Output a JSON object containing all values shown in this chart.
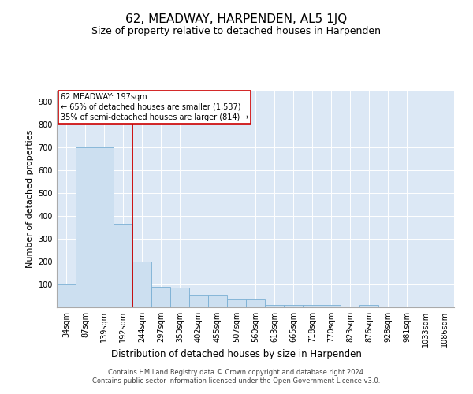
{
  "title": "62, MEADWAY, HARPENDEN, AL5 1JQ",
  "subtitle": "Size of property relative to detached houses in Harpenden",
  "xlabel": "Distribution of detached houses by size in Harpenden",
  "ylabel": "Number of detached properties",
  "categories": [
    "34sqm",
    "87sqm",
    "139sqm",
    "192sqm",
    "244sqm",
    "297sqm",
    "350sqm",
    "402sqm",
    "455sqm",
    "507sqm",
    "560sqm",
    "613sqm",
    "665sqm",
    "718sqm",
    "770sqm",
    "823sqm",
    "876sqm",
    "928sqm",
    "981sqm",
    "1033sqm",
    "1086sqm"
  ],
  "values": [
    100,
    700,
    700,
    365,
    200,
    90,
    85,
    55,
    55,
    35,
    35,
    10,
    10,
    10,
    10,
    0,
    10,
    0,
    0,
    5,
    5
  ],
  "bar_color": "#ccdff0",
  "bar_edge_color": "#7aafd4",
  "vline_x_index": 3,
  "vline_color": "#cc0000",
  "annotation_text": "62 MEADWAY: 197sqm\n← 65% of detached houses are smaller (1,537)\n35% of semi-detached houses are larger (814) →",
  "annotation_box_facecolor": "#ffffff",
  "annotation_box_edgecolor": "#cc0000",
  "ylim": [
    0,
    950
  ],
  "yticks": [
    0,
    100,
    200,
    300,
    400,
    500,
    600,
    700,
    800,
    900
  ],
  "background_color": "#dce8f5",
  "footer": "Contains HM Land Registry data © Crown copyright and database right 2024.\nContains public sector information licensed under the Open Government Licence v3.0.",
  "title_fontsize": 11,
  "subtitle_fontsize": 9,
  "xlabel_fontsize": 8.5,
  "ylabel_fontsize": 8,
  "tick_fontsize": 7,
  "footer_fontsize": 6
}
